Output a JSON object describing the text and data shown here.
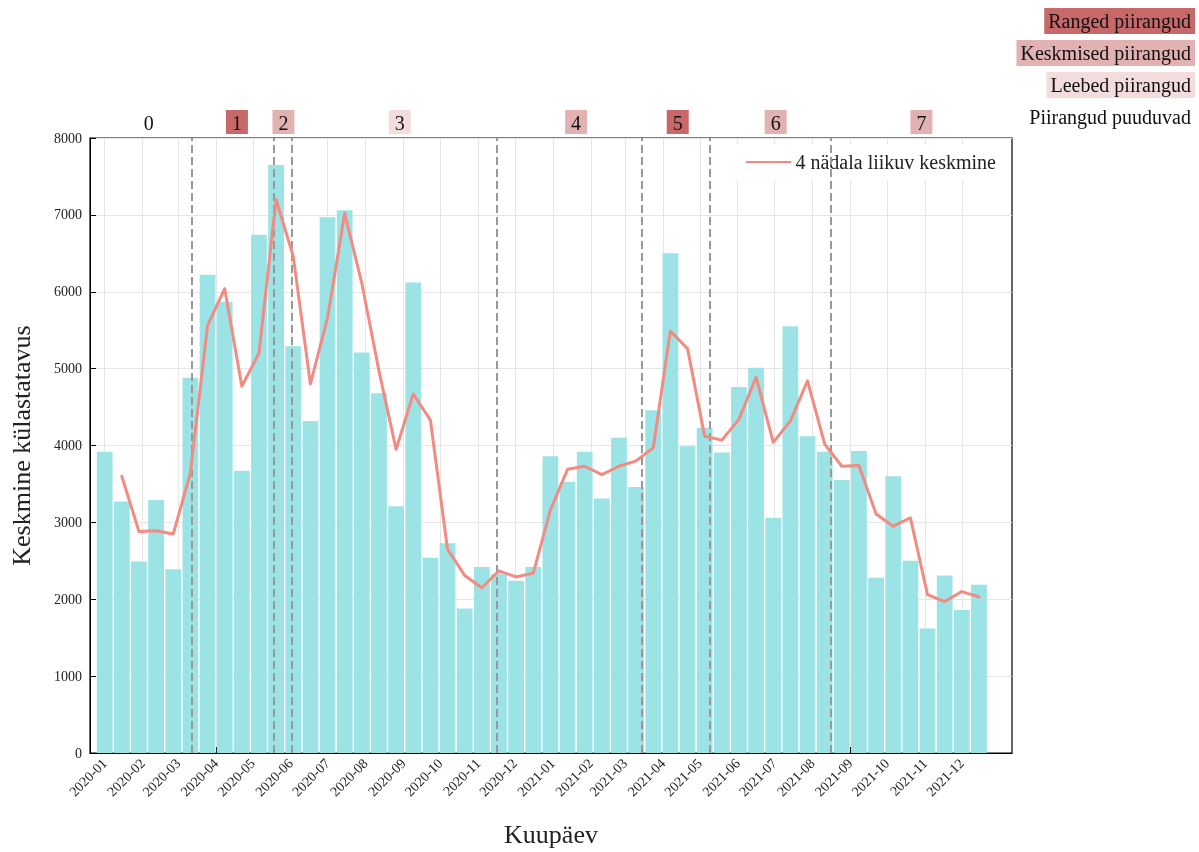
{
  "chart_data": {
    "type": "bar",
    "xlabel": "Kuupäev",
    "ylabel": "Keskmine külastatavus",
    "x": [
      "2020-01-01",
      "2020-01-15",
      "2020-01-29",
      "2020-02-12",
      "2020-02-26",
      "2020-03-11",
      "2020-03-25",
      "2020-04-08",
      "2020-04-22",
      "2020-05-06",
      "2020-05-20",
      "2020-06-03",
      "2020-06-17",
      "2020-07-01",
      "2020-07-15",
      "2020-07-29",
      "2020-08-12",
      "2020-08-26",
      "2020-09-09",
      "2020-09-23",
      "2020-10-07",
      "2020-10-21",
      "2020-11-04",
      "2020-11-18",
      "2020-12-02",
      "2020-12-16",
      "2020-12-30",
      "2021-01-13",
      "2021-01-27",
      "2021-02-10",
      "2021-02-24",
      "2021-03-10",
      "2021-03-24",
      "2021-04-07",
      "2021-04-21",
      "2021-05-05",
      "2021-05-19",
      "2021-06-02",
      "2021-06-16",
      "2021-06-30",
      "2021-07-14",
      "2021-07-28",
      "2021-08-11",
      "2021-08-25",
      "2021-09-08",
      "2021-09-22",
      "2021-10-06",
      "2021-10-20",
      "2021-11-03",
      "2021-11-17",
      "2021-12-01",
      "2021-12-15"
    ],
    "series": [
      {
        "color": "#9ce3e6",
        "values": [
          3920,
          3270,
          2490,
          3290,
          2390,
          4880,
          6220,
          5870,
          3670,
          6740,
          7650,
          5290,
          4320,
          6970,
          7060,
          5210,
          4680,
          3210,
          6120,
          2540,
          2730,
          1880,
          2420,
          2330,
          2240,
          2420,
          3860,
          3530,
          3920,
          3310,
          4100,
          3460,
          4460,
          6500,
          3990,
          4230,
          3910,
          4760,
          5010,
          3060,
          5550,
          4120,
          3920,
          3550,
          3930,
          2280,
          3600,
          2500,
          1620,
          2310,
          1860,
          2190
        ]
      },
      {
        "type": "line",
        "name": "4 nädala liikuv keskmine",
        "color": "#f28b82",
        "marker": "none",
        "line_style": "solid",
        "x": [
          "2020-01-15",
          "2020-01-29",
          "2020-02-12",
          "2020-02-26",
          "2020-03-11",
          "2020-03-25",
          "2020-04-08",
          "2020-04-22",
          "2020-05-06",
          "2020-05-20",
          "2020-06-03",
          "2020-06-17",
          "2020-07-01",
          "2020-07-15",
          "2020-07-29",
          "2020-08-12",
          "2020-08-26",
          "2020-09-09",
          "2020-09-23",
          "2020-10-07",
          "2020-10-21",
          "2020-11-04",
          "2020-11-18",
          "2020-12-02",
          "2020-12-16",
          "2020-12-30",
          "2021-01-13",
          "2021-01-27",
          "2021-02-10",
          "2021-02-24",
          "2021-03-10",
          "2021-03-24",
          "2021-04-07",
          "2021-04-21",
          "2021-05-05",
          "2021-05-19",
          "2021-06-02",
          "2021-06-16",
          "2021-06-30",
          "2021-07-14",
          "2021-07-28",
          "2021-08-11",
          "2021-08-25",
          "2021-09-08",
          "2021-09-22",
          "2021-10-06",
          "2021-10-20",
          "2021-11-03",
          "2021-11-17",
          "2021-12-01",
          "2021-12-15"
        ],
        "values": [
          3600,
          2880,
          2890,
          2850,
          3640,
          5560,
          6040,
          4770,
          5200,
          7200,
          6460,
          4800,
          5660,
          7020,
          6110,
          4970,
          3950,
          4670,
          4330,
          2650,
          2310,
          2150,
          2370,
          2290,
          2340,
          3160,
          3690,
          3730,
          3620,
          3730,
          3800,
          3970,
          5490,
          5260,
          4120,
          4070,
          4340,
          4890,
          4040,
          4320,
          4840,
          4020,
          3730,
          3740,
          3110,
          2950,
          3060,
          2060,
          1970,
          2100,
          2030
        ]
      }
    ],
    "xlim": [
      "2019-12-20",
      "2022-01-11"
    ],
    "xticks": [
      {
        "value": "2020-01-01",
        "label": "2020-01"
      },
      {
        "value": "2020-02-01",
        "label": "2020-02"
      },
      {
        "value": "2020-03-01",
        "label": "2020-03"
      },
      {
        "value": "2020-04-01",
        "label": "2020-04"
      },
      {
        "value": "2020-05-01",
        "label": "2020-05"
      },
      {
        "value": "2020-06-01",
        "label": "2020-06"
      },
      {
        "value": "2020-07-01",
        "label": "2020-07"
      },
      {
        "value": "2020-08-01",
        "label": "2020-08"
      },
      {
        "value": "2020-09-01",
        "label": "2020-09"
      },
      {
        "value": "2020-10-01",
        "label": "2020-10"
      },
      {
        "value": "2020-11-01",
        "label": "2020-11"
      },
      {
        "value": "2020-12-01",
        "label": "2020-12"
      },
      {
        "value": "2021-01-01",
        "label": "2021-01"
      },
      {
        "value": "2021-02-01",
        "label": "2021-02"
      },
      {
        "value": "2021-03-01",
        "label": "2021-03"
      },
      {
        "value": "2021-04-01",
        "label": "2021-04"
      },
      {
        "value": "2021-05-01",
        "label": "2021-05"
      },
      {
        "value": "2021-06-01",
        "label": "2021-06"
      },
      {
        "value": "2021-07-01",
        "label": "2021-07"
      },
      {
        "value": "2021-08-01",
        "label": "2021-08"
      },
      {
        "value": "2021-09-01",
        "label": "2021-09"
      },
      {
        "value": "2021-10-01",
        "label": "2021-10"
      },
      {
        "value": "2021-11-01",
        "label": "2021-11"
      },
      {
        "value": "2021-12-01",
        "label": "2021-12"
      }
    ],
    "ylim": [
      0,
      8000
    ],
    "yticks": [
      0,
      1000,
      2000,
      3000,
      4000,
      5000,
      6000,
      7000,
      8000
    ],
    "grid": true,
    "legend": "top right",
    "ref_lines": [
      {
        "axis": "x",
        "value": "2020-03-12",
        "color": "#999999",
        "line_style": "dashed"
      },
      {
        "axis": "x",
        "value": "2020-05-18",
        "color": "#999999",
        "line_style": "dashed"
      },
      {
        "axis": "x",
        "value": "2020-06-02",
        "color": "#999999",
        "line_style": "dashed"
      },
      {
        "axis": "x",
        "value": "2020-11-16",
        "color": "#999999",
        "line_style": "dashed"
      },
      {
        "axis": "x",
        "value": "2021-03-15",
        "color": "#999999",
        "line_style": "dashed"
      },
      {
        "axis": "x",
        "value": "2021-05-09",
        "color": "#999999",
        "line_style": "dashed"
      },
      {
        "axis": "x",
        "value": "2021-08-16",
        "color": "#999999",
        "line_style": "dashed"
      }
    ],
    "x2lim": [
      "2019-12-20",
      "2022-01-11"
    ],
    "x2ticks": [
      {
        "value": "2020-02-06",
        "label": "0"
      },
      {
        "value": "2020-04-18",
        "label": "1"
      },
      {
        "value": "2020-05-26",
        "label": "2"
      },
      {
        "value": "2020-08-29",
        "label": "3"
      },
      {
        "value": "2021-01-20",
        "label": "4"
      },
      {
        "value": "2021-04-13",
        "label": "5"
      },
      {
        "value": "2021-07-02",
        "label": "6"
      },
      {
        "value": "2021-10-29",
        "label": "7"
      }
    ],
    "annotations": [
      "Ranged piirangud",
      "Keskmised piirangud",
      "Leebed piirangud",
      "Piirangud puuduvad"
    ]
  }
}
